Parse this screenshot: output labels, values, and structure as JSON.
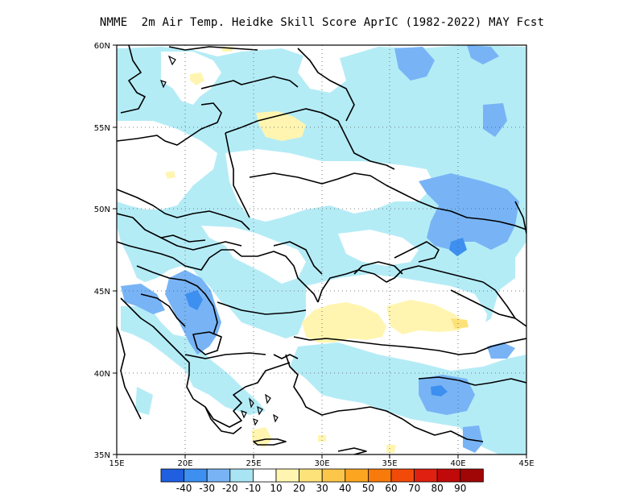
{
  "title": "NMME  2m Air Temp. Heidke Skill Score AprIC (1982-2022) MAY Fcst",
  "map": {
    "lon_range": [
      15,
      45
    ],
    "lat_range": [
      35,
      60
    ],
    "x_ticks": [
      "15E",
      "20E",
      "25E",
      "30E",
      "35E",
      "40E",
      "45E"
    ],
    "y_ticks": [
      "60N",
      "55N",
      "50N",
      "45N",
      "40N",
      "35N"
    ],
    "gridlines": "dotted"
  },
  "colorbar": {
    "colors": [
      "#1f5fe0",
      "#3d8ff0",
      "#78b4f5",
      "#a8e4f4",
      "#ffffff",
      "#fff5b0",
      "#fde27a",
      "#fcc64a",
      "#fba520",
      "#f87a0a",
      "#f24a08",
      "#e02010",
      "#c00a0a",
      "#a00606"
    ],
    "labels": [
      "-40",
      "-30",
      "-20",
      "-10",
      "10",
      "20",
      "30",
      "40",
      "50",
      "60",
      "70",
      "80",
      "90"
    ]
  },
  "legend_colors": {
    "skill_neg10": "#b4ecf6",
    "skill_neg20": "#78b4f5",
    "skill_neg30": "#3d8ff0",
    "skill_pos10": "#fff5b0"
  }
}
